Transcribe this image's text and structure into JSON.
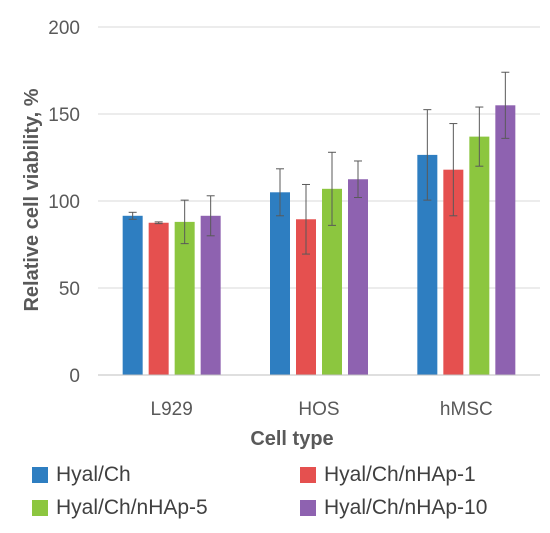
{
  "chart_data": {
    "type": "bar",
    "xlabel": "Cell type",
    "ylabel": "Relative cell viability, %",
    "ylim": [
      0,
      200
    ],
    "yticks": [
      "0",
      "50",
      "100",
      "150",
      "200"
    ],
    "categories": [
      "L929",
      "HOS",
      "hMSC"
    ],
    "grid": "horizontal",
    "legend_position": "bottom",
    "series": [
      {
        "name": "Hyal/Ch",
        "color": "#2E7EC1",
        "values": [
          91.5,
          105,
          126.5
        ],
        "errors": [
          2,
          13.5,
          26
        ]
      },
      {
        "name": "Hyal/Ch/nHAp-1",
        "color": "#E5504F",
        "values": [
          87.5,
          89.5,
          118
        ],
        "errors": [
          0.5,
          20,
          26.5
        ]
      },
      {
        "name": "Hyal/Ch/nHAp-5",
        "color": "#8CC63F",
        "values": [
          88,
          107,
          137
        ],
        "errors": [
          12.5,
          21,
          17
        ]
      },
      {
        "name": "Hyal/Ch/nHAp-10",
        "color": "#8E62B0",
        "values": [
          91.5,
          112.5,
          155
        ],
        "errors": [
          11.5,
          10.5,
          19
        ]
      }
    ]
  }
}
